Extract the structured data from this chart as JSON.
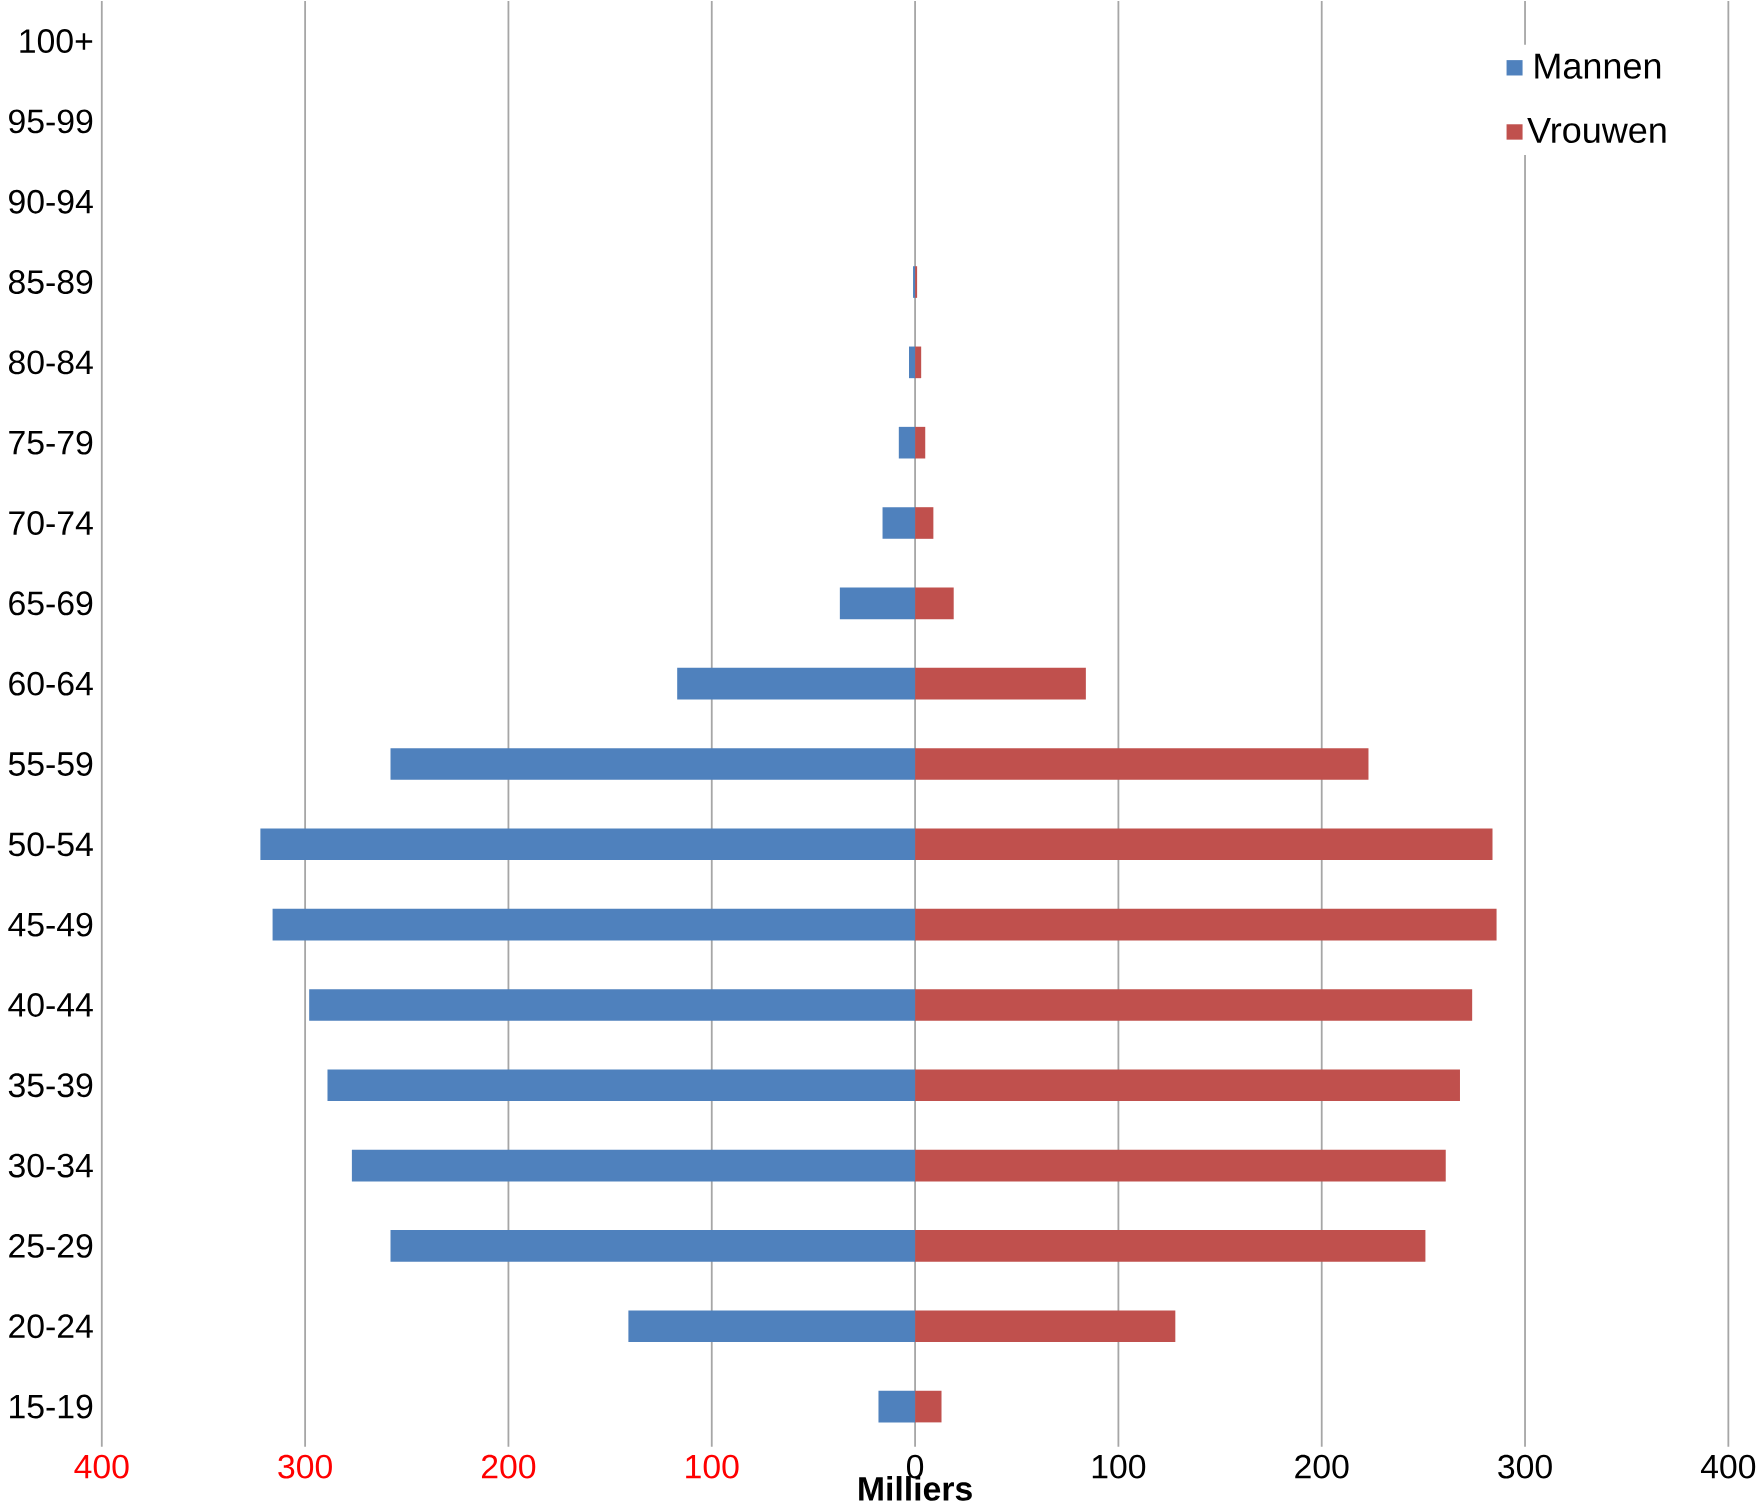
{
  "chart_data": {
    "type": "bar",
    "orientation": "horizontal",
    "xlabel": "Milliers",
    "categories": [
      "100+",
      "95-99",
      "90-94",
      "85-89",
      "80-84",
      "75-79",
      "70-74",
      "65-69",
      "60-64",
      "55-59",
      "50-54",
      "45-49",
      "40-44",
      "35-39",
      "30-34",
      "25-29",
      "20-24",
      "15-19"
    ],
    "series": [
      {
        "name": "Mannen",
        "color": "#4f81bd",
        "values": [
          0,
          0,
          0,
          -1,
          -3,
          -8,
          -16,
          -37,
          -117,
          -258,
          -322,
          -316,
          -298,
          -289,
          -277,
          -258,
          -141,
          -18
        ]
      },
      {
        "name": "Vrouwen",
        "color": "#c0504d",
        "values": [
          0,
          0,
          0,
          1,
          3,
          5,
          9,
          19,
          84,
          223,
          284,
          286,
          274,
          268,
          261,
          251,
          128,
          13
        ]
      }
    ],
    "xlim": [
      -400,
      400
    ],
    "xticks": [
      {
        "value": -400,
        "label": "400"
      },
      {
        "value": -300,
        "label": "300"
      },
      {
        "value": -200,
        "label": "200"
      },
      {
        "value": -100,
        "label": "100"
      },
      0,
      100,
      200,
      300,
      400
    ],
    "grid": "x",
    "legend": "top right",
    "stacked": true
  }
}
